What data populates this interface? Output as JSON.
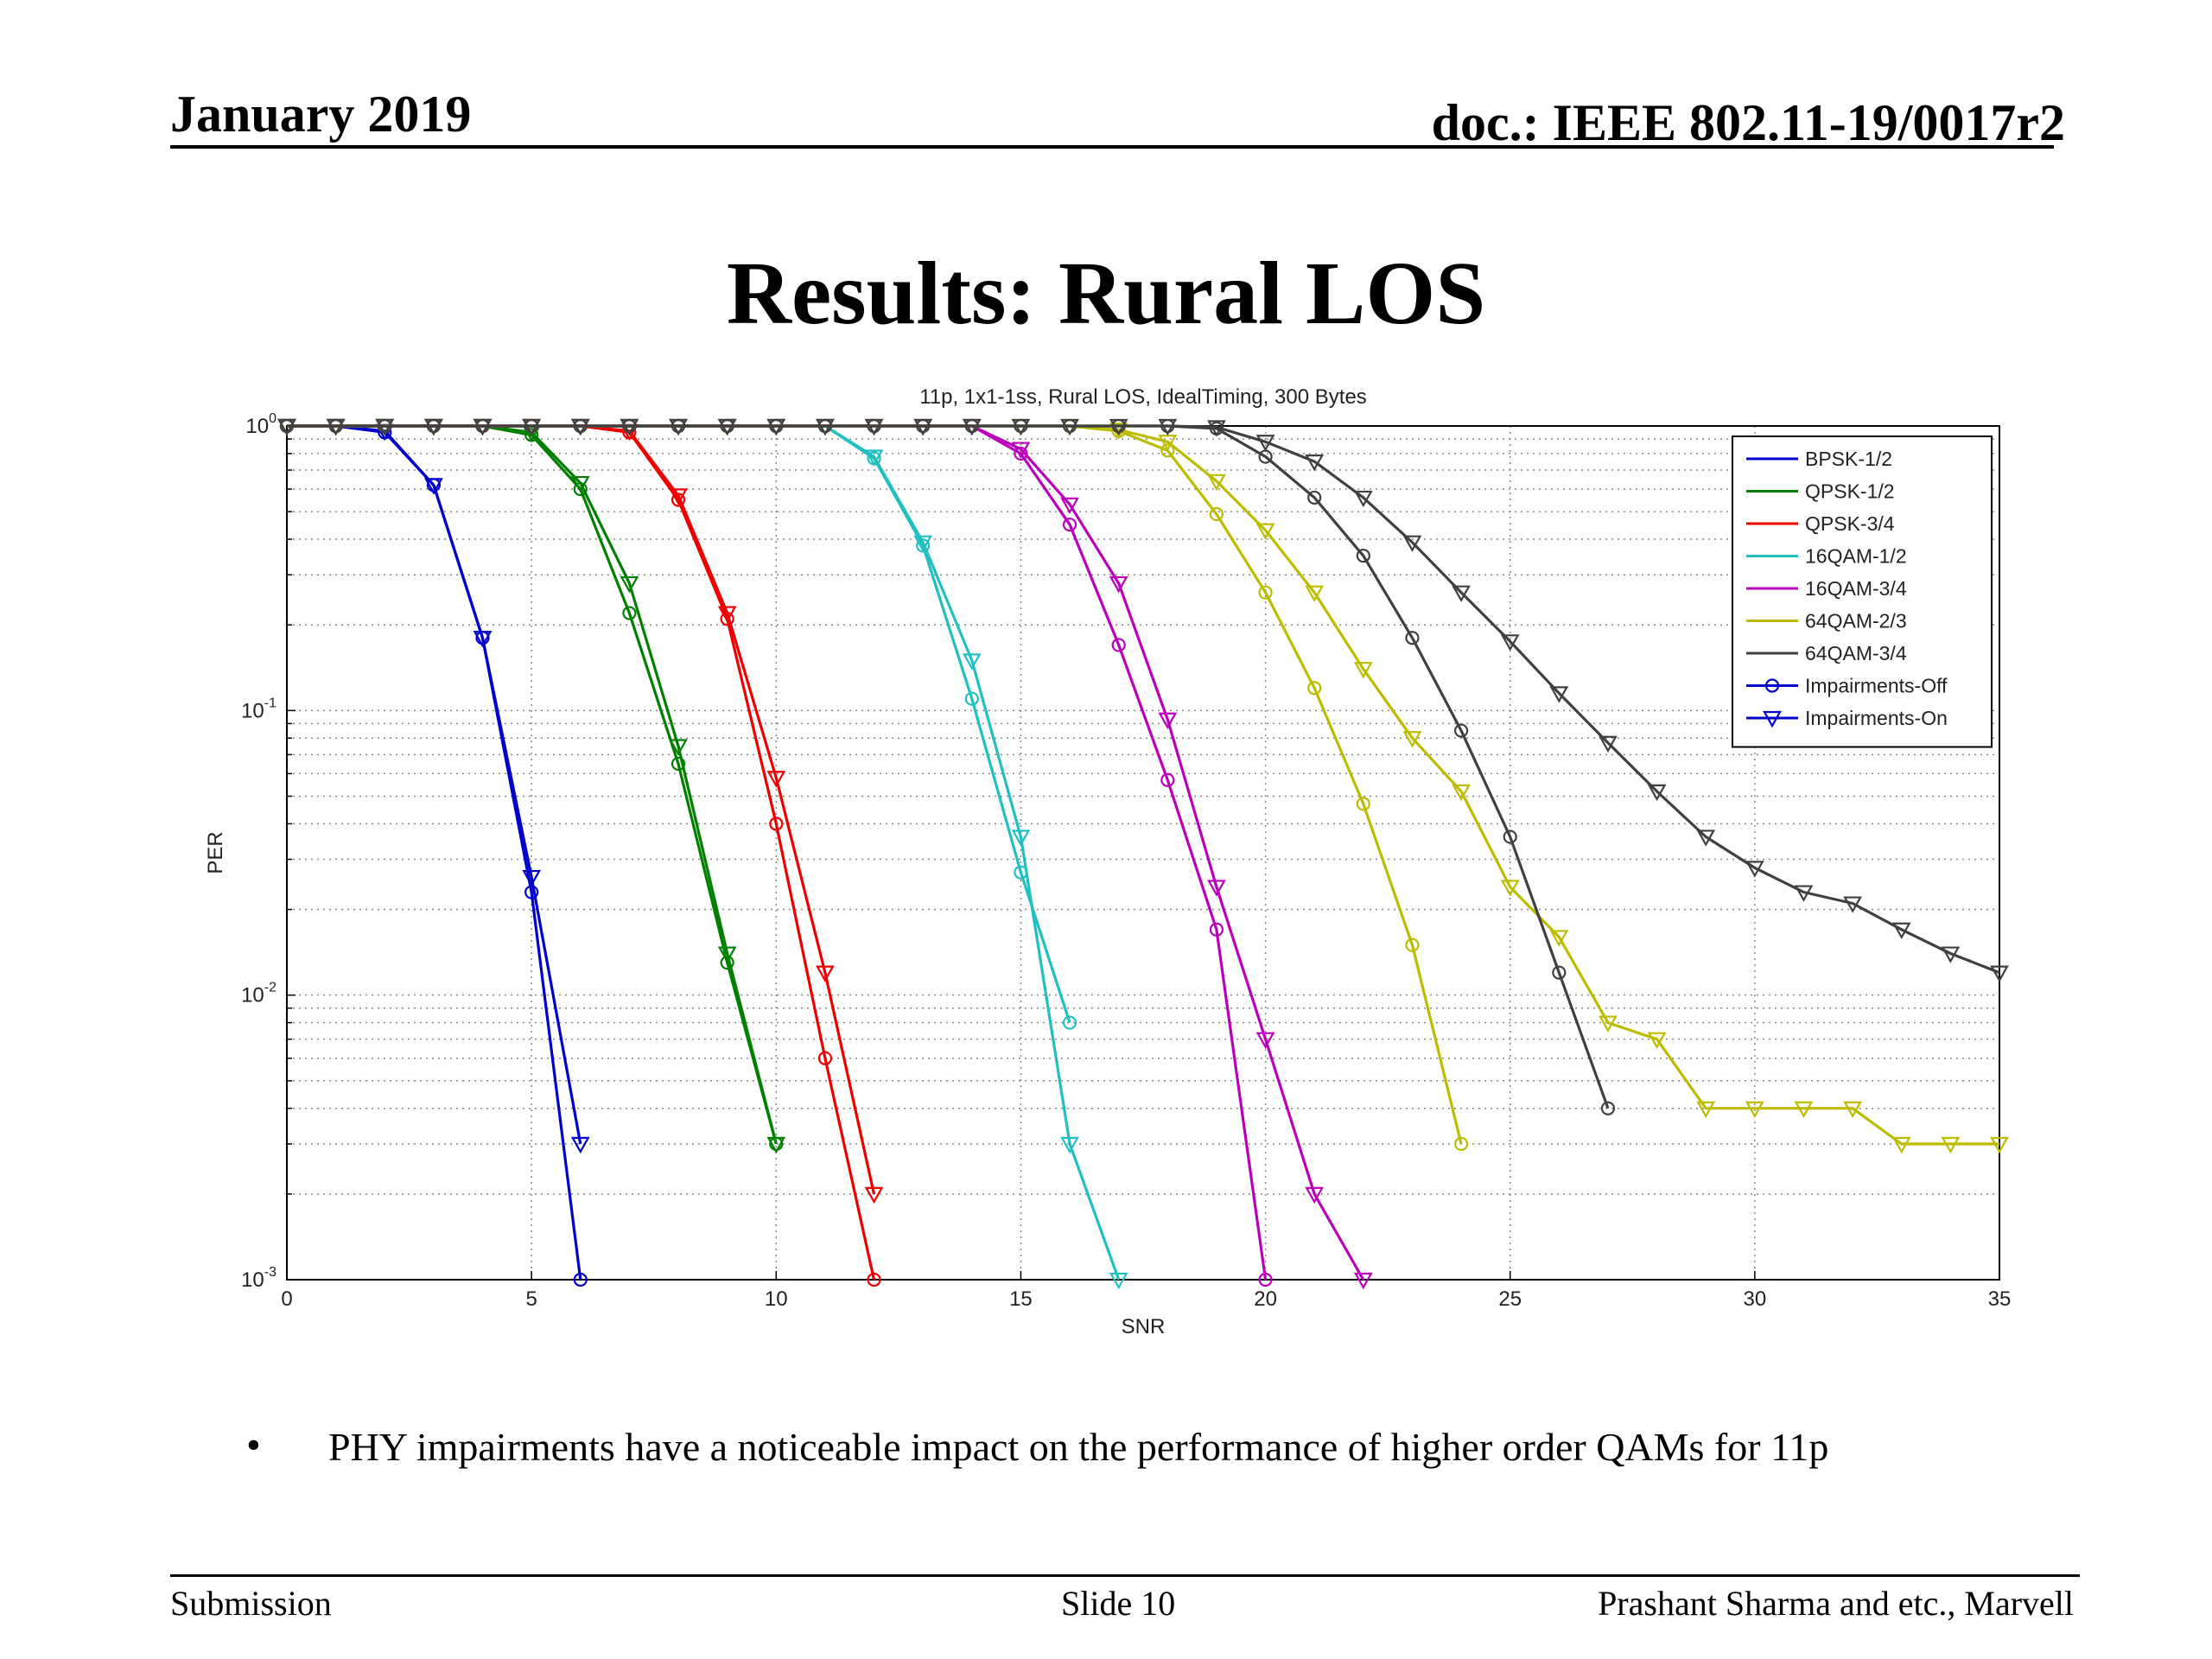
{
  "header": {
    "date": "January 2019",
    "doc_id": "doc.: IEEE 802.11-19/0017r2"
  },
  "slide_title": "Results: Rural LOS",
  "bullet": "PHY impairments have a noticeable impact on the performance of higher order QAMs for 11p",
  "footer": {
    "left": "Submission",
    "center": "Slide 10",
    "right": "Prashant Sharma and etc., Marvell"
  },
  "chart_data": {
    "type": "line",
    "title": "11p, 1x1-1ss, Rural LOS, IdealTiming, 300 Bytes",
    "xlabel": "SNR",
    "ylabel": "PER",
    "xlim": [
      0,
      35
    ],
    "ylim": [
      0.001,
      1
    ],
    "y_scale": "log",
    "grid": true,
    "legend_position": "top-right",
    "x_ticks": [
      "0",
      "5",
      "10",
      "15",
      "20",
      "25",
      "30",
      "35"
    ],
    "y_ticks": [
      {
        "base": "10",
        "exp": "0"
      },
      {
        "base": "10",
        "exp": "-1"
      },
      {
        "base": "10",
        "exp": "-2"
      },
      {
        "base": "10",
        "exp": "-3"
      }
    ],
    "legend": [
      {
        "label": "BPSK-1/2",
        "color": "#0000cc",
        "marker": "none"
      },
      {
        "label": "QPSK-1/2",
        "color": "#008000",
        "marker": "none"
      },
      {
        "label": "QPSK-3/4",
        "color": "#ee0000",
        "marker": "none"
      },
      {
        "label": "16QAM-1/2",
        "color": "#20c0c0",
        "marker": "none"
      },
      {
        "label": "16QAM-3/4",
        "color": "#bb00bb",
        "marker": "none"
      },
      {
        "label": "64QAM-2/3",
        "color": "#bcbc00",
        "marker": "none"
      },
      {
        "label": "64QAM-3/4",
        "color": "#404040",
        "marker": "none"
      },
      {
        "label": "Impairments-Off",
        "color": "#0000cc",
        "marker": "circle"
      },
      {
        "label": "Impairments-On",
        "color": "#0000cc",
        "marker": "triangle"
      }
    ],
    "series": [
      {
        "name": "BPSK-1/2",
        "impairments": "off",
        "color": "#0000cc",
        "marker": "circle",
        "x": [
          0,
          1,
          2,
          3,
          4,
          5,
          6
        ],
        "y": [
          1,
          1,
          0.95,
          0.62,
          0.18,
          0.023,
          0.001
        ]
      },
      {
        "name": "BPSK-1/2",
        "impairments": "on",
        "color": "#0000cc",
        "marker": "triangle",
        "x": [
          0,
          1,
          2,
          3,
          4,
          5,
          6
        ],
        "y": [
          1,
          1,
          0.96,
          0.62,
          0.18,
          0.026,
          0.003
        ]
      },
      {
        "name": "QPSK-1/2",
        "impairments": "off",
        "color": "#008000",
        "marker": "circle",
        "x": [
          0,
          1,
          2,
          3,
          4,
          5,
          6,
          7,
          8,
          9,
          10
        ],
        "y": [
          1,
          1,
          1,
          1,
          1,
          0.93,
          0.6,
          0.22,
          0.065,
          0.013,
          0.003
        ]
      },
      {
        "name": "QPSK-1/2",
        "impairments": "on",
        "color": "#008000",
        "marker": "triangle",
        "x": [
          0,
          1,
          2,
          3,
          4,
          5,
          6,
          7,
          8,
          9,
          10
        ],
        "y": [
          1,
          1,
          1,
          1,
          1,
          0.95,
          0.63,
          0.28,
          0.075,
          0.014,
          0.003
        ]
      },
      {
        "name": "QPSK-3/4",
        "impairments": "off",
        "color": "#ee0000",
        "marker": "circle",
        "x": [
          0,
          1,
          2,
          3,
          4,
          5,
          6,
          7,
          8,
          9,
          10,
          11,
          12
        ],
        "y": [
          1,
          1,
          1,
          1,
          1,
          1,
          1,
          0.95,
          0.55,
          0.21,
          0.04,
          0.006,
          0.001
        ]
      },
      {
        "name": "QPSK-3/4",
        "impairments": "on",
        "color": "#ee0000",
        "marker": "triangle",
        "x": [
          0,
          1,
          2,
          3,
          4,
          5,
          6,
          7,
          8,
          9,
          10,
          11,
          12
        ],
        "y": [
          1,
          1,
          1,
          1,
          1,
          1,
          1,
          0.96,
          0.57,
          0.22,
          0.058,
          0.012,
          0.002
        ]
      },
      {
        "name": "16QAM-1/2",
        "impairments": "off",
        "color": "#20c0c0",
        "marker": "circle",
        "x": [
          0,
          1,
          2,
          3,
          4,
          5,
          6,
          7,
          8,
          9,
          10,
          11,
          12,
          13,
          14,
          15,
          16
        ],
        "y": [
          1,
          1,
          1,
          1,
          1,
          1,
          1,
          1,
          1,
          1,
          1,
          1,
          0.77,
          0.38,
          0.11,
          0.027,
          0.008
        ]
      },
      {
        "name": "16QAM-1/2",
        "impairments": "on",
        "color": "#20c0c0",
        "marker": "triangle",
        "x": [
          0,
          1,
          2,
          3,
          4,
          5,
          6,
          7,
          8,
          9,
          10,
          11,
          12,
          13,
          14,
          15,
          16,
          17
        ],
        "y": [
          1,
          1,
          1,
          1,
          1,
          1,
          1,
          1,
          1,
          1,
          1,
          1,
          0.78,
          0.39,
          0.15,
          0.036,
          0.003,
          0.001
        ]
      },
      {
        "name": "16QAM-3/4",
        "impairments": "off",
        "color": "#bb00bb",
        "marker": "circle",
        "x": [
          0,
          1,
          2,
          3,
          4,
          5,
          6,
          7,
          8,
          9,
          10,
          11,
          12,
          13,
          14,
          15,
          16,
          17,
          18,
          19,
          20
        ],
        "y": [
          1,
          1,
          1,
          1,
          1,
          1,
          1,
          1,
          1,
          1,
          1,
          1,
          1,
          1,
          1,
          0.8,
          0.45,
          0.17,
          0.057,
          0.017,
          0.001
        ]
      },
      {
        "name": "16QAM-3/4",
        "impairments": "on",
        "color": "#bb00bb",
        "marker": "triangle",
        "x": [
          0,
          1,
          2,
          3,
          4,
          5,
          6,
          7,
          8,
          9,
          10,
          11,
          12,
          13,
          14,
          15,
          16,
          17,
          18,
          19,
          20,
          21,
          22
        ],
        "y": [
          1,
          1,
          1,
          1,
          1,
          1,
          1,
          1,
          1,
          1,
          1,
          1,
          1,
          1,
          1,
          0.83,
          0.53,
          0.28,
          0.093,
          0.024,
          0.007,
          0.002,
          0.001
        ]
      },
      {
        "name": "64QAM-2/3",
        "impairments": "off",
        "color": "#bcbc00",
        "marker": "circle",
        "x": [
          0,
          1,
          2,
          3,
          4,
          5,
          6,
          7,
          8,
          9,
          10,
          11,
          12,
          13,
          14,
          15,
          16,
          17,
          18,
          19,
          20,
          21,
          22,
          23,
          24
        ],
        "y": [
          1,
          1,
          1,
          1,
          1,
          1,
          1,
          1,
          1,
          1,
          1,
          1,
          1,
          1,
          1,
          1,
          1,
          0.96,
          0.82,
          0.49,
          0.26,
          0.12,
          0.047,
          0.015,
          0.003
        ]
      },
      {
        "name": "64QAM-2/3",
        "impairments": "on",
        "color": "#bcbc00",
        "marker": "triangle",
        "x": [
          0,
          1,
          2,
          3,
          4,
          5,
          6,
          7,
          8,
          9,
          10,
          11,
          12,
          13,
          14,
          15,
          16,
          17,
          18,
          19,
          20,
          21,
          22,
          23,
          24,
          25,
          26,
          27,
          28,
          29,
          30,
          31,
          32,
          33,
          34,
          35
        ],
        "y": [
          1,
          1,
          1,
          1,
          1,
          1,
          1,
          1,
          1,
          1,
          1,
          1,
          1,
          1,
          1,
          1,
          1,
          0.97,
          0.88,
          0.64,
          0.43,
          0.26,
          0.14,
          0.08,
          0.052,
          0.024,
          0.016,
          0.008,
          0.007,
          0.004,
          0.004,
          0.004,
          0.004,
          0.003,
          0.003,
          0.003
        ]
      },
      {
        "name": "64QAM-3/4",
        "impairments": "off",
        "color": "#404040",
        "marker": "circle",
        "x": [
          0,
          1,
          2,
          3,
          4,
          5,
          6,
          7,
          8,
          9,
          10,
          11,
          12,
          13,
          14,
          15,
          16,
          17,
          18,
          19,
          20,
          21,
          22,
          23,
          24,
          25,
          26,
          27
        ],
        "y": [
          1,
          1,
          1,
          1,
          1,
          1,
          1,
          1,
          1,
          1,
          1,
          1,
          1,
          1,
          1,
          1,
          1,
          1,
          1,
          0.98,
          0.78,
          0.56,
          0.35,
          0.18,
          0.085,
          0.036,
          0.012,
          0.004
        ]
      },
      {
        "name": "64QAM-3/4",
        "impairments": "on",
        "color": "#404040",
        "marker": "triangle",
        "x": [
          0,
          1,
          2,
          3,
          4,
          5,
          6,
          7,
          8,
          9,
          10,
          11,
          12,
          13,
          14,
          15,
          16,
          17,
          18,
          19,
          20,
          21,
          22,
          23,
          24,
          25,
          26,
          27,
          28,
          29,
          30,
          31,
          32,
          33,
          34,
          35
        ],
        "y": [
          1,
          1,
          1,
          1,
          1,
          1,
          1,
          1,
          1,
          1,
          1,
          1,
          1,
          1,
          1,
          1,
          1,
          1,
          1,
          0.99,
          0.88,
          0.75,
          0.56,
          0.39,
          0.26,
          0.175,
          0.115,
          0.077,
          0.052,
          0.036,
          0.028,
          0.023,
          0.021,
          0.017,
          0.014,
          0.012
        ]
      }
    ]
  }
}
